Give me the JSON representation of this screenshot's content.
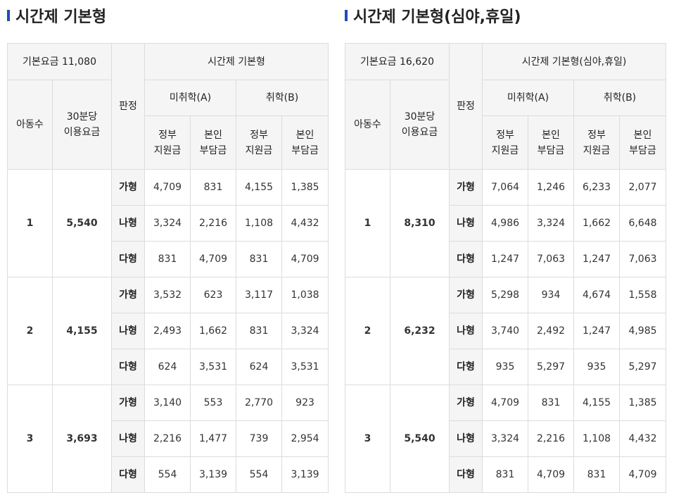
{
  "colors": {
    "accent": "#1e4db7",
    "header_bg": "#f5f5f5",
    "border": "#dcdcdc"
  },
  "labels": {
    "children": "아동수",
    "rate_line1": "30분당",
    "rate_line2": "이용요금",
    "judgment": "판정",
    "a": "미취학(A)",
    "b": "취학(B)",
    "gov_line1": "정부",
    "gov_line2": "지원금",
    "self_line1": "본인",
    "self_line2": "부담금",
    "type1": "가형",
    "type2": "나형",
    "type3": "다형"
  },
  "left": {
    "title": "시간제 기본형",
    "base_fee": "기본요금 11,080",
    "group_header": "시간제 기본형",
    "groups": [
      {
        "count": "1",
        "rate": "5,540",
        "rows": [
          [
            "4,709",
            "831",
            "4,155",
            "1,385"
          ],
          [
            "3,324",
            "2,216",
            "1,108",
            "4,432"
          ],
          [
            "831",
            "4,709",
            "831",
            "4,709"
          ]
        ]
      },
      {
        "count": "2",
        "rate": "4,155",
        "rows": [
          [
            "3,532",
            "623",
            "3,117",
            "1,038"
          ],
          [
            "2,493",
            "1,662",
            "831",
            "3,324"
          ],
          [
            "624",
            "3,531",
            "624",
            "3,531"
          ]
        ]
      },
      {
        "count": "3",
        "rate": "3,693",
        "rows": [
          [
            "3,140",
            "553",
            "2,770",
            "923"
          ],
          [
            "2,216",
            "1,477",
            "739",
            "2,954"
          ],
          [
            "554",
            "3,139",
            "554",
            "3,139"
          ]
        ]
      }
    ]
  },
  "right": {
    "title": "시간제 기본형(심야,휴일)",
    "base_fee": "기본요금 16,620",
    "group_header": "시간제 기본형(심야,휴일)",
    "groups": [
      {
        "count": "1",
        "rate": "8,310",
        "rows": [
          [
            "7,064",
            "1,246",
            "6,233",
            "2,077"
          ],
          [
            "4,986",
            "3,324",
            "1,662",
            "6,648"
          ],
          [
            "1,247",
            "7,063",
            "1,247",
            "7,063"
          ]
        ]
      },
      {
        "count": "2",
        "rate": "6,232",
        "rows": [
          [
            "5,298",
            "934",
            "4,674",
            "1,558"
          ],
          [
            "3,740",
            "2,492",
            "1,247",
            "4,985"
          ],
          [
            "935",
            "5,297",
            "935",
            "5,297"
          ]
        ]
      },
      {
        "count": "3",
        "rate": "5,540",
        "rows": [
          [
            "4,709",
            "831",
            "4,155",
            "1,385"
          ],
          [
            "3,324",
            "2,216",
            "1,108",
            "4,432"
          ],
          [
            "831",
            "4,709",
            "831",
            "4,709"
          ]
        ]
      }
    ]
  }
}
